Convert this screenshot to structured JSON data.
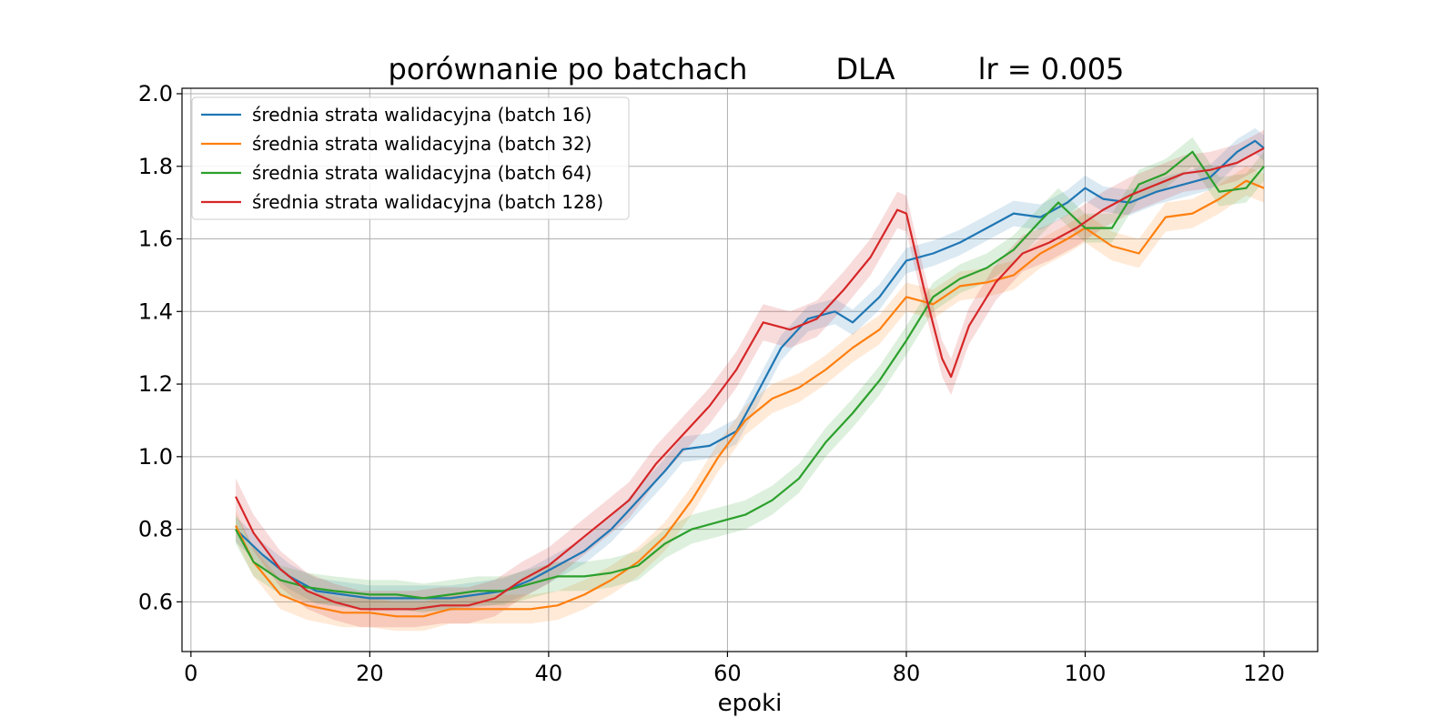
{
  "chart_data": {
    "type": "line",
    "title_parts": [
      "porównanie po batchach",
      "DLA",
      "lr = 0.005"
    ],
    "xlabel": "epoki",
    "ylabel": "",
    "xlim": [
      -1,
      126
    ],
    "ylim": [
      0.463,
      2.015
    ],
    "xticks": [
      0,
      20,
      40,
      60,
      80,
      100,
      120
    ],
    "yticks": [
      0.6,
      0.8,
      1.0,
      1.2,
      1.4,
      1.6,
      1.8,
      2.0
    ],
    "grid": true,
    "legend_position": "upper-left",
    "colors": {
      "blue": "#1f77b4",
      "orange": "#ff7f0e",
      "green": "#2ca02c",
      "red": "#d62728",
      "grid": "#b0b0b0"
    },
    "series": [
      {
        "name": "średnia strata walidacyjna (batch 16)",
        "color": "#1f77b4",
        "band": 0.035,
        "points": [
          [
            5,
            0.8
          ],
          [
            8,
            0.73
          ],
          [
            11,
            0.67
          ],
          [
            14,
            0.63
          ],
          [
            17,
            0.62
          ],
          [
            20,
            0.61
          ],
          [
            23,
            0.61
          ],
          [
            26,
            0.61
          ],
          [
            29,
            0.61
          ],
          [
            32,
            0.62
          ],
          [
            35,
            0.63
          ],
          [
            38,
            0.66
          ],
          [
            41,
            0.7
          ],
          [
            44,
            0.74
          ],
          [
            47,
            0.8
          ],
          [
            50,
            0.88
          ],
          [
            53,
            0.96
          ],
          [
            55,
            1.02
          ],
          [
            58,
            1.03
          ],
          [
            61,
            1.07
          ],
          [
            63,
            1.16
          ],
          [
            66,
            1.3
          ],
          [
            69,
            1.38
          ],
          [
            72,
            1.4
          ],
          [
            74,
            1.37
          ],
          [
            77,
            1.44
          ],
          [
            80,
            1.54
          ],
          [
            83,
            1.56
          ],
          [
            86,
            1.59
          ],
          [
            89,
            1.63
          ],
          [
            92,
            1.67
          ],
          [
            95,
            1.66
          ],
          [
            98,
            1.7
          ],
          [
            100,
            1.74
          ],
          [
            102,
            1.71
          ],
          [
            105,
            1.7
          ],
          [
            108,
            1.73
          ],
          [
            111,
            1.75
          ],
          [
            114,
            1.77
          ],
          [
            117,
            1.84
          ],
          [
            119,
            1.87
          ],
          [
            120,
            1.85
          ]
        ]
      },
      {
        "name": "średnia strata walidacyjna (batch 32)",
        "color": "#ff7f0e",
        "band": 0.04,
        "points": [
          [
            5,
            0.81
          ],
          [
            7,
            0.71
          ],
          [
            10,
            0.62
          ],
          [
            13,
            0.59
          ],
          [
            17,
            0.57
          ],
          [
            20,
            0.57
          ],
          [
            23,
            0.56
          ],
          [
            26,
            0.56
          ],
          [
            29,
            0.58
          ],
          [
            32,
            0.58
          ],
          [
            35,
            0.58
          ],
          [
            38,
            0.58
          ],
          [
            41,
            0.59
          ],
          [
            44,
            0.62
          ],
          [
            47,
            0.66
          ],
          [
            50,
            0.71
          ],
          [
            53,
            0.78
          ],
          [
            56,
            0.88
          ],
          [
            59,
            1.0
          ],
          [
            62,
            1.1
          ],
          [
            65,
            1.16
          ],
          [
            68,
            1.19
          ],
          [
            71,
            1.24
          ],
          [
            74,
            1.3
          ],
          [
            77,
            1.35
          ],
          [
            80,
            1.44
          ],
          [
            83,
            1.42
          ],
          [
            86,
            1.47
          ],
          [
            89,
            1.48
          ],
          [
            92,
            1.5
          ],
          [
            95,
            1.56
          ],
          [
            98,
            1.6
          ],
          [
            100,
            1.63
          ],
          [
            103,
            1.58
          ],
          [
            106,
            1.56
          ],
          [
            109,
            1.66
          ],
          [
            112,
            1.67
          ],
          [
            115,
            1.71
          ],
          [
            118,
            1.76
          ],
          [
            120,
            1.74
          ]
        ]
      },
      {
        "name": "średnia strata walidacyjna (batch 64)",
        "color": "#2ca02c",
        "band": 0.04,
        "points": [
          [
            5,
            0.8
          ],
          [
            7,
            0.71
          ],
          [
            10,
            0.66
          ],
          [
            13,
            0.64
          ],
          [
            16,
            0.63
          ],
          [
            20,
            0.62
          ],
          [
            23,
            0.62
          ],
          [
            26,
            0.61
          ],
          [
            29,
            0.62
          ],
          [
            32,
            0.63
          ],
          [
            35,
            0.63
          ],
          [
            38,
            0.65
          ],
          [
            41,
            0.67
          ],
          [
            44,
            0.67
          ],
          [
            47,
            0.68
          ],
          [
            50,
            0.7
          ],
          [
            53,
            0.76
          ],
          [
            56,
            0.8
          ],
          [
            59,
            0.82
          ],
          [
            62,
            0.84
          ],
          [
            65,
            0.88
          ],
          [
            68,
            0.94
          ],
          [
            71,
            1.04
          ],
          [
            74,
            1.12
          ],
          [
            77,
            1.21
          ],
          [
            80,
            1.32
          ],
          [
            83,
            1.44
          ],
          [
            86,
            1.49
          ],
          [
            89,
            1.52
          ],
          [
            92,
            1.57
          ],
          [
            95,
            1.65
          ],
          [
            97,
            1.7
          ],
          [
            100,
            1.63
          ],
          [
            103,
            1.63
          ],
          [
            106,
            1.75
          ],
          [
            109,
            1.78
          ],
          [
            112,
            1.84
          ],
          [
            115,
            1.73
          ],
          [
            118,
            1.74
          ],
          [
            120,
            1.8
          ]
        ]
      },
      {
        "name": "średnia strata walidacyjna (batch 128)",
        "color": "#d62728",
        "band": 0.05,
        "points": [
          [
            5,
            0.89
          ],
          [
            7,
            0.79
          ],
          [
            10,
            0.69
          ],
          [
            13,
            0.63
          ],
          [
            16,
            0.6
          ],
          [
            19,
            0.58
          ],
          [
            22,
            0.58
          ],
          [
            25,
            0.58
          ],
          [
            28,
            0.59
          ],
          [
            31,
            0.59
          ],
          [
            34,
            0.61
          ],
          [
            37,
            0.66
          ],
          [
            40,
            0.7
          ],
          [
            43,
            0.76
          ],
          [
            46,
            0.82
          ],
          [
            49,
            0.88
          ],
          [
            52,
            0.98
          ],
          [
            55,
            1.06
          ],
          [
            58,
            1.14
          ],
          [
            61,
            1.24
          ],
          [
            64,
            1.37
          ],
          [
            67,
            1.35
          ],
          [
            70,
            1.38
          ],
          [
            73,
            1.46
          ],
          [
            76,
            1.55
          ],
          [
            79,
            1.68
          ],
          [
            80,
            1.67
          ],
          [
            82,
            1.46
          ],
          [
            84,
            1.27
          ],
          [
            85,
            1.22
          ],
          [
            87,
            1.36
          ],
          [
            90,
            1.48
          ],
          [
            93,
            1.56
          ],
          [
            96,
            1.59
          ],
          [
            99,
            1.63
          ],
          [
            102,
            1.68
          ],
          [
            105,
            1.72
          ],
          [
            108,
            1.75
          ],
          [
            111,
            1.78
          ],
          [
            114,
            1.79
          ],
          [
            117,
            1.81
          ],
          [
            120,
            1.85
          ]
        ]
      }
    ]
  }
}
